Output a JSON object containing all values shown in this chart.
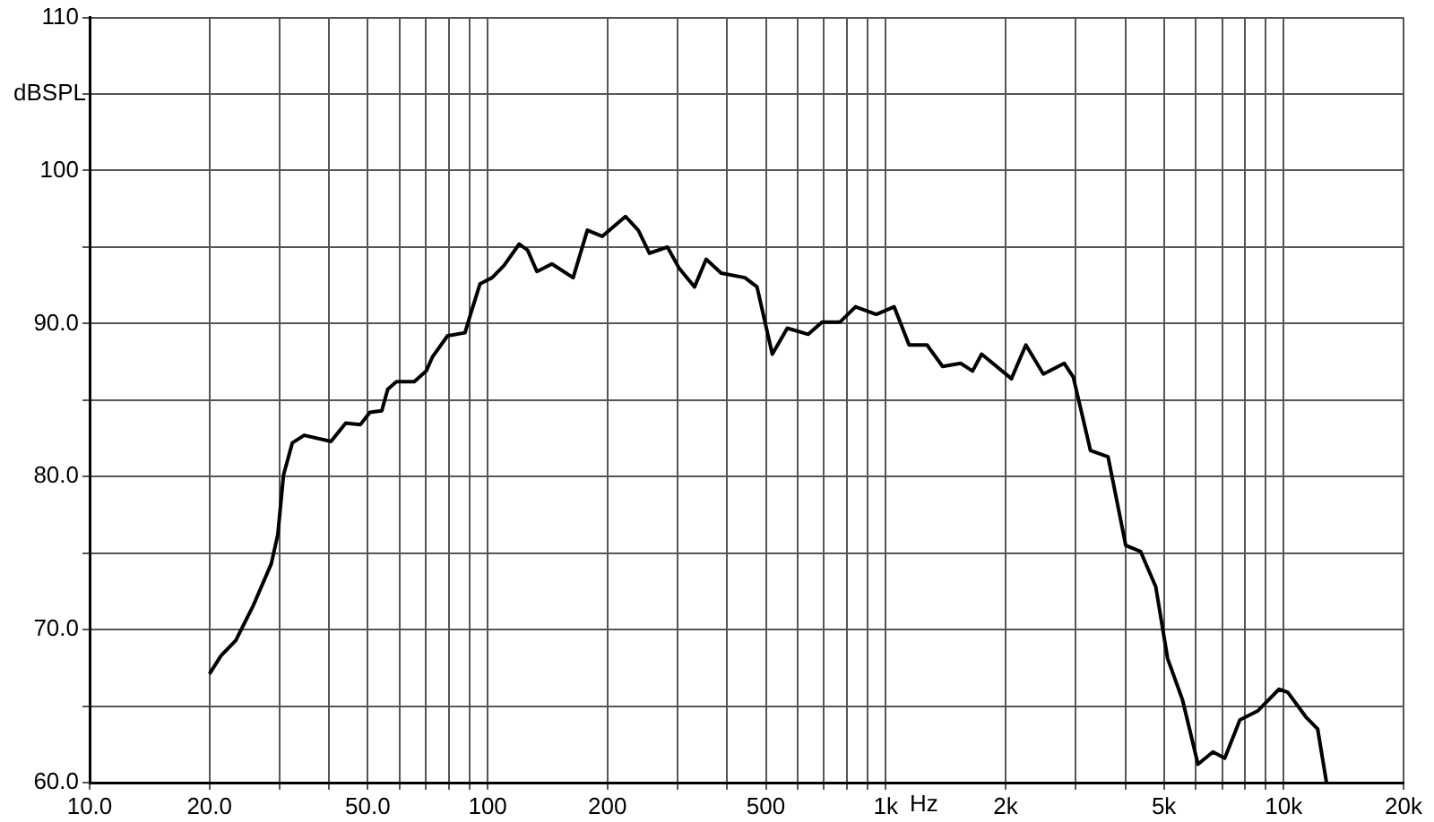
{
  "chart_data": {
    "type": "line",
    "xlabel": "Hz",
    "ylabel": "dBSPL",
    "log": "x",
    "grid": true,
    "xlim": [
      10,
      20000
    ],
    "ylim": [
      60,
      110
    ],
    "xticks": [
      {
        "value": 10,
        "label": "10.0"
      },
      {
        "value": 20,
        "label": "20.0"
      },
      {
        "value": 30,
        "label": null
      },
      {
        "value": 40,
        "label": null
      },
      {
        "value": 50,
        "label": "50.0"
      },
      {
        "value": 60,
        "label": null
      },
      {
        "value": 70,
        "label": null
      },
      {
        "value": 80,
        "label": null
      },
      {
        "value": 90,
        "label": null
      },
      100,
      200,
      {
        "value": 300,
        "label": null
      },
      {
        "value": 400,
        "label": null
      },
      500,
      {
        "value": 600,
        "label": null
      },
      {
        "value": 700,
        "label": null
      },
      {
        "value": 800,
        "label": null
      },
      {
        "value": 900,
        "label": null
      },
      {
        "value": 1000,
        "label": "1k"
      },
      {
        "value": 2000,
        "label": "2k"
      },
      {
        "value": 3000,
        "label": null
      },
      {
        "value": 4000,
        "label": null
      },
      {
        "value": 5000,
        "label": "5k"
      },
      {
        "value": 6000,
        "label": null
      },
      {
        "value": 7000,
        "label": null
      },
      {
        "value": 8000,
        "label": null
      },
      {
        "value": 9000,
        "label": null
      },
      {
        "value": 10000,
        "label": "10k"
      },
      {
        "value": 20000,
        "label": "20k"
      }
    ],
    "yticks": [
      {
        "value": 60,
        "label": "60.0"
      },
      {
        "value": 65,
        "label": null
      },
      {
        "value": 70,
        "label": "70.0"
      },
      {
        "value": 75,
        "label": null
      },
      {
        "value": 80,
        "label": "80.0"
      },
      {
        "value": 85,
        "label": null
      },
      {
        "value": 90,
        "label": "90.0"
      },
      {
        "value": 95,
        "label": null
      },
      100,
      {
        "value": 105,
        "label": null
      },
      110
    ],
    "x": [
      20,
      21.4,
      23.3,
      25.8,
      28.6,
      29.7,
      30.7,
      32.3,
      34.6,
      40.4,
      44,
      47.9,
      50.6,
      54.2,
      56.1,
      59,
      65.4,
      70.1,
      72.6,
      79.3,
      87.7,
      90.8,
      95.7,
      102.6,
      110,
      120,
      126,
      133,
      145,
      164,
      178,
      194,
      222,
      239,
      255,
      283,
      303,
      331,
      354,
      386,
      443,
      475,
      519,
      566,
      639,
      692,
      768,
      840,
      947,
      1050,
      1145,
      1270,
      1390,
      1543,
      1653,
      1742,
      2070,
      2250,
      2490,
      2810,
      2960,
      3170,
      3270,
      3620,
      4010,
      4370,
      4770,
      5110,
      5570,
      6090,
      6640,
      7110,
      7760,
      8620,
      9730,
      10240,
      11360,
      12170,
      12810
    ],
    "series": [
      {
        "color": "#000000",
        "values": [
          67.1,
          68.3,
          69.3,
          71.6,
          74.3,
          76.2,
          80.1,
          82.2,
          82.7,
          82.3,
          83.5,
          83.4,
          84.2,
          84.3,
          85.7,
          86.2,
          86.2,
          86.9,
          87.8,
          89.2,
          89.4,
          90.7,
          92.6,
          93,
          93.8,
          95.2,
          94.8,
          93.4,
          93.9,
          93,
          96.1,
          95.7,
          97,
          96.1,
          94.6,
          95,
          93.6,
          92.4,
          94.2,
          93.3,
          93,
          92.4,
          88,
          89.7,
          89.3,
          90.1,
          90.1,
          91.1,
          90.6,
          91.1,
          88.6,
          88.6,
          87.2,
          87.4,
          86.9,
          88,
          86.4,
          88.6,
          86.7,
          87.4,
          86.5,
          83.2,
          81.7,
          81.3,
          75.5,
          75.1,
          72.8,
          68.1,
          65.4,
          61.2,
          62,
          61.6,
          64.1,
          64.7,
          66.1,
          65.9,
          64.3,
          63.5,
          60
        ]
      }
    ]
  }
}
